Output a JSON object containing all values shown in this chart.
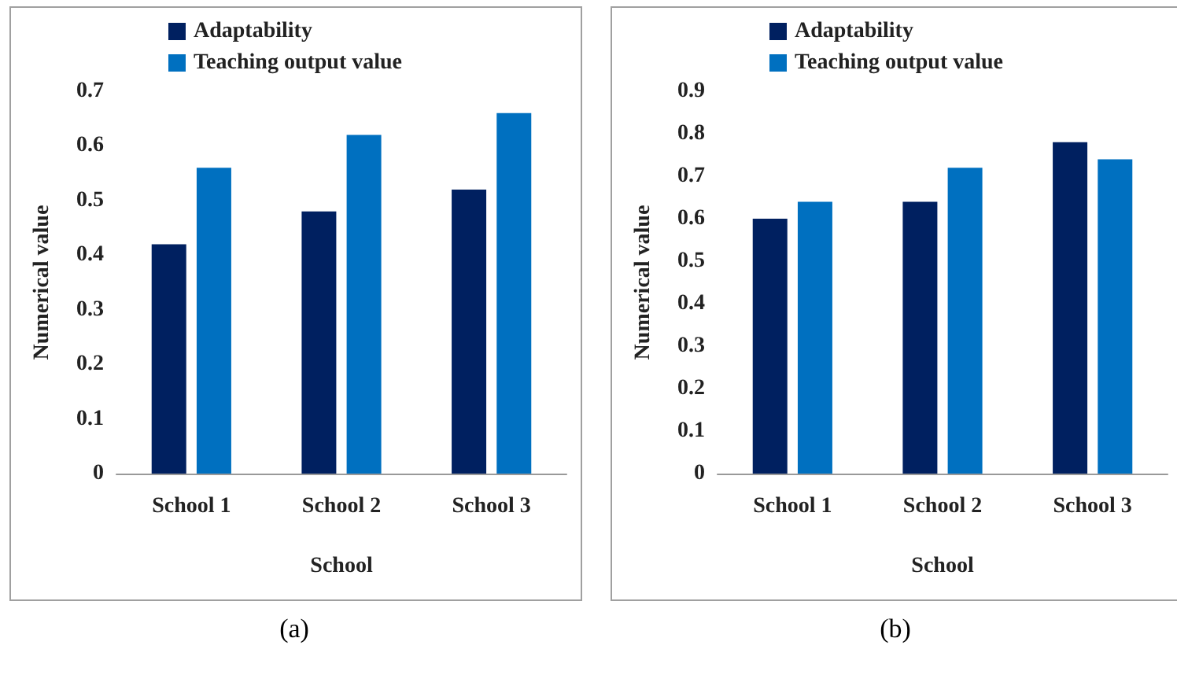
{
  "chart_data": [
    {
      "type": "bar",
      "categories": [
        "School 1",
        "School 2",
        "School 3"
      ],
      "xlabel": "School",
      "ylabel": "Numerical value",
      "ylim": [
        0,
        0.7
      ],
      "yticks": [
        0,
        0.1,
        0.2,
        0.3,
        0.4,
        0.5,
        0.6,
        0.7
      ],
      "grid": false,
      "legend": "top",
      "annotations": [
        "(a)"
      ],
      "series": [
        {
          "name": "Adaptability",
          "color": "#002060",
          "values": [
            0.42,
            0.48,
            0.52
          ]
        },
        {
          "name": "Teaching output value",
          "color": "#0070c0",
          "values": [
            0.56,
            0.62,
            0.66
          ]
        }
      ]
    },
    {
      "type": "bar",
      "categories": [
        "School 1",
        "School 2",
        "School 3"
      ],
      "xlabel": "School",
      "ylabel": "Numerical value",
      "ylim": [
        0,
        0.9
      ],
      "yticks": [
        0,
        0.1,
        0.2,
        0.3,
        0.4,
        0.5,
        0.6,
        0.7,
        0.8,
        0.9
      ],
      "grid": false,
      "legend": "top",
      "annotations": [
        "(b)"
      ],
      "series": [
        {
          "name": "Adaptability",
          "color": "#002060",
          "values": [
            0.6,
            0.64,
            0.78
          ]
        },
        {
          "name": "Teaching output value",
          "color": "#0070c0",
          "values": [
            0.64,
            0.72,
            0.74
          ]
        }
      ]
    }
  ]
}
